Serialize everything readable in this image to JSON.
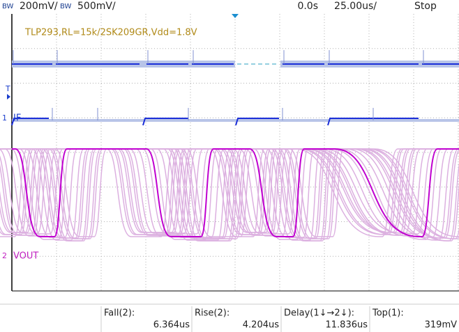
{
  "header": {
    "ch1_bw": "BW",
    "ch1_scale": "200mV/",
    "ch2_bw": "BW",
    "ch2_scale": "500mV/",
    "time_offset": "0.0s",
    "time_scale": "25.00us/",
    "status": "Stop"
  },
  "screen": {
    "annotation": "TLP293,RL=15k/2SK209GR,Vdd=1.8V",
    "trigger_label": "T",
    "channels": [
      {
        "number": "1",
        "label": "IF"
      },
      {
        "number": "2",
        "label": "VOUT"
      }
    ]
  },
  "measurements": [
    {
      "name": "Fall(2):",
      "value": "6.364us"
    },
    {
      "name": "Rise(2):",
      "value": "4.204us"
    },
    {
      "name": "Delay(1↓→2↓):",
      "value": "11.836us"
    },
    {
      "name": "Top(1):",
      "value": "319mV"
    }
  ]
}
